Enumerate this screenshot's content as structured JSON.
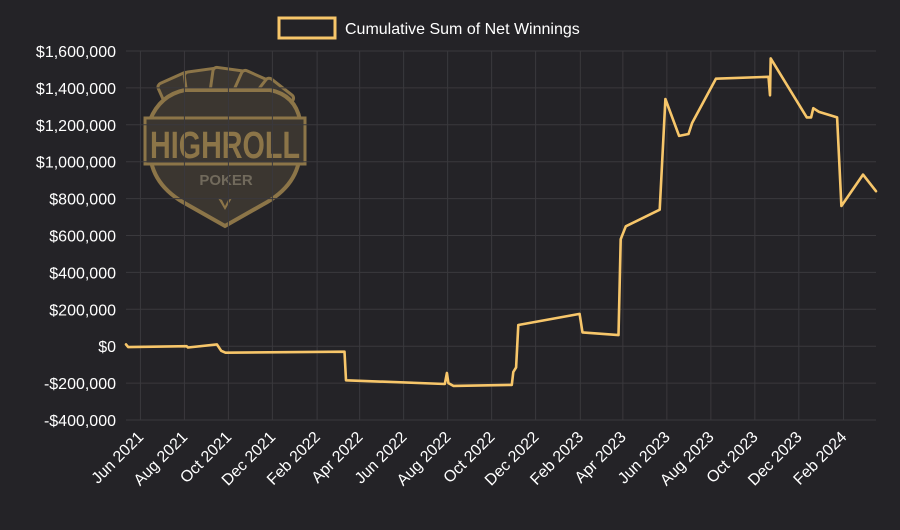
{
  "colors": {
    "background": "#242327",
    "line": "#f7c66a",
    "grid": "#3a393d",
    "text": "#ffffff",
    "logo_gold": "#8c7548",
    "logo_dark": "#3b3630",
    "logo_text_muted": "#716a5c"
  },
  "logo": {
    "wordmark": "HIGHROLL",
    "subtext": "POKER"
  },
  "chart_data": {
    "type": "line",
    "title": "",
    "xlabel": "",
    "ylabel": "",
    "ylim": [
      -400000,
      1600000
    ],
    "y_ticks": [
      -400000,
      -200000,
      0,
      200000,
      400000,
      600000,
      800000,
      1000000,
      1200000,
      1400000,
      1600000
    ],
    "y_tick_labels": [
      "-$400,000",
      "-$200,000",
      "$0",
      "$200,000",
      "$400,000",
      "$600,000",
      "$800,000",
      "$1,000,000",
      "$1,200,000",
      "$1,400,000",
      "$1,600,000"
    ],
    "x_ticks": [
      "2021-06-01",
      "2021-08-01",
      "2021-10-01",
      "2021-12-01",
      "2022-02-01",
      "2022-04-01",
      "2022-06-01",
      "2022-08-01",
      "2022-10-01",
      "2022-12-01",
      "2023-02-01",
      "2023-04-01",
      "2023-06-01",
      "2023-08-01",
      "2023-10-01",
      "2023-12-01",
      "2024-02-01"
    ],
    "x_tick_labels": [
      "Jun 2021",
      "Aug 2021",
      "Oct 2021",
      "Dec 2021",
      "Feb 2022",
      "Apr 2022",
      "Jun 2022",
      "Aug 2022",
      "Oct 2022",
      "Dec 2022",
      "Feb 2023",
      "Apr 2023",
      "Jun 2023",
      "Aug 2023",
      "Oct 2023",
      "Dec 2023",
      "Feb 2024"
    ],
    "grid": true,
    "legend": "top-center",
    "series": [
      {
        "name": "Cumulative Sum of Net Winnings",
        "color": "#f7c66a",
        "points": [
          [
            "2021-05-12",
            10000
          ],
          [
            "2021-05-15",
            -5000
          ],
          [
            "2021-08-04",
            0
          ],
          [
            "2021-08-06",
            -7000
          ],
          [
            "2021-09-15",
            10000
          ],
          [
            "2021-09-21",
            -25000
          ],
          [
            "2021-09-27",
            -35000
          ],
          [
            "2022-03-11",
            -30000
          ],
          [
            "2022-03-13",
            -185000
          ],
          [
            "2022-07-28",
            -205000
          ],
          [
            "2022-07-31",
            -145000
          ],
          [
            "2022-08-02",
            -200000
          ],
          [
            "2022-08-09",
            -215000
          ],
          [
            "2022-10-29",
            -210000
          ],
          [
            "2022-10-31",
            -140000
          ],
          [
            "2022-11-04",
            -115000
          ],
          [
            "2022-11-07",
            115000
          ],
          [
            "2023-01-31",
            175000
          ],
          [
            "2023-02-04",
            75000
          ],
          [
            "2023-03-26",
            60000
          ],
          [
            "2023-03-29",
            580000
          ],
          [
            "2023-04-05",
            650000
          ],
          [
            "2023-05-22",
            740000
          ],
          [
            "2023-05-30",
            1340000
          ],
          [
            "2023-06-18",
            1140000
          ],
          [
            "2023-07-01",
            1150000
          ],
          [
            "2023-07-06",
            1210000
          ],
          [
            "2023-08-08",
            1450000
          ],
          [
            "2023-10-20",
            1460000
          ],
          [
            "2023-10-22",
            1360000
          ],
          [
            "2023-10-23",
            1560000
          ],
          [
            "2023-12-12",
            1240000
          ],
          [
            "2023-12-18",
            1240000
          ],
          [
            "2023-12-21",
            1290000
          ],
          [
            "2023-12-29",
            1270000
          ],
          [
            "2024-01-23",
            1240000
          ],
          [
            "2024-01-29",
            760000
          ],
          [
            "2024-02-28",
            930000
          ],
          [
            "2024-03-17",
            840000
          ]
        ]
      }
    ]
  }
}
